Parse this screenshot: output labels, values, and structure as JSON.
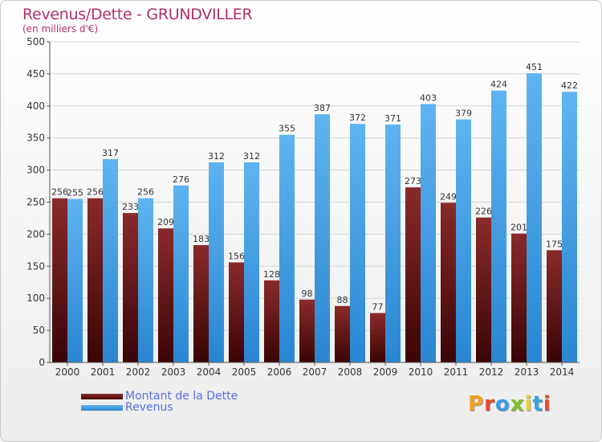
{
  "header": {
    "title": "Revenus/Dette - GRUNDVILLER",
    "subtitle": "(en milliers d'€)"
  },
  "colors": {
    "dette": "#6b1a1a",
    "revenus": "#3b9be0",
    "title": "#b0306e",
    "legend_text": "#5a6ee0"
  },
  "legend": {
    "dette_label": "Montant de la Dette",
    "revenus_label": "Revenus"
  },
  "logo": {
    "text": "Proxiti",
    "letter_colors": [
      "#f0a020",
      "#e84a30",
      "#3aa0e0",
      "#7cc030",
      "#e8d030",
      "#3aa0e0",
      "#e84a30"
    ]
  },
  "chart_data": {
    "type": "bar",
    "categories": [
      "2000",
      "2001",
      "2002",
      "2003",
      "2004",
      "2005",
      "2006",
      "2007",
      "2008",
      "2009",
      "2010",
      "2011",
      "2012",
      "2013",
      "2014"
    ],
    "series": [
      {
        "name": "Montant de la Dette",
        "values": [
          256,
          256,
          233,
          209,
          183,
          156,
          128,
          98,
          88,
          77,
          273,
          249,
          226,
          201,
          175
        ]
      },
      {
        "name": "Revenus",
        "values": [
          255,
          317,
          256,
          276,
          312,
          312,
          355,
          387,
          372,
          371,
          403,
          379,
          424,
          451,
          422
        ]
      }
    ],
    "ylim": [
      0,
      500
    ],
    "yticks": [
      0,
      50,
      100,
      150,
      200,
      250,
      300,
      350,
      400,
      450,
      500
    ],
    "grid": true
  }
}
